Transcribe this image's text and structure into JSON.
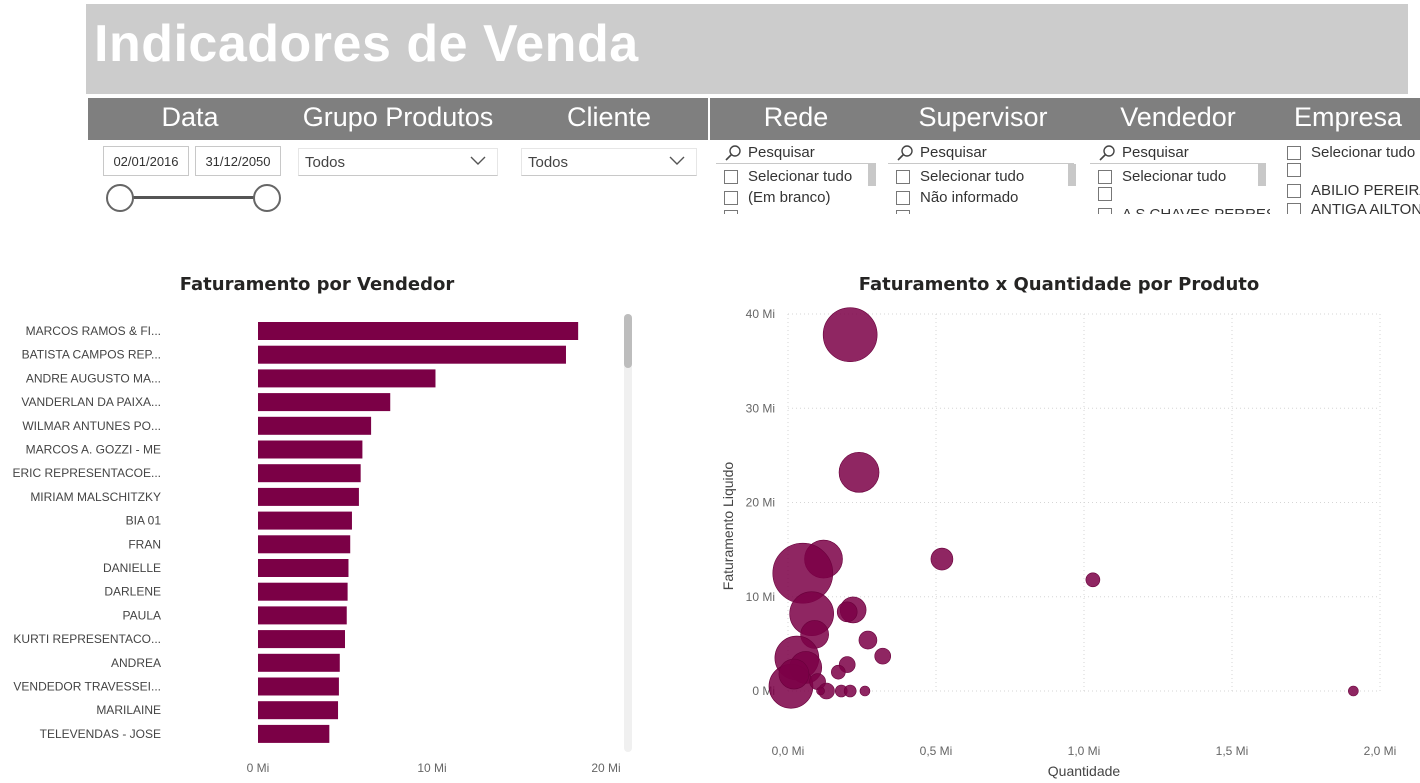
{
  "header": {
    "title": "Indicadores de Venda"
  },
  "filters": {
    "titles": {
      "data": "Data",
      "grupo": "Grupo Produtos",
      "cliente": "Cliente",
      "rede": "Rede",
      "supervisor": "Supervisor",
      "vendedor": "Vendedor",
      "empresa": "Empresa"
    },
    "date": {
      "start": "02/01/2016",
      "end": "31/12/2050"
    },
    "grupo_produtos": {
      "selected": "Todos"
    },
    "cliente": {
      "selected": "Todos"
    },
    "rede": {
      "search": "Pesquisar",
      "items": [
        "Selecionar tudo",
        "(Em branco)"
      ]
    },
    "supervisor": {
      "search": "Pesquisar",
      "items": [
        "Selecionar tudo",
        "Não informado"
      ]
    },
    "vendedor": {
      "search": "Pesquisar",
      "items": [
        "Selecionar tudo",
        "",
        "A S CHAVES PERRES"
      ]
    },
    "empresa": {
      "items": [
        "Selecionar tudo",
        "",
        "ABILIO PEREIRA",
        "ANTIGA AILTON"
      ]
    }
  },
  "chart_data": [
    {
      "type": "bar",
      "orientation": "horizontal",
      "title": "Faturamento por Vendedor",
      "color": "#7b0046",
      "categories": [
        "MARCOS RAMOS & FI...",
        "BATISTA CAMPOS REP...",
        "ANDRE AUGUSTO MA...",
        "VANDERLAN DA PAIXA...",
        "WILMAR ANTUNES PO...",
        "MARCOS A. GOZZI - ME",
        "ERIC REPRESENTACOE...",
        "MIRIAM MALSCHITZKY",
        "BIA 01",
        "FRAN",
        "DANIELLE",
        "DARLENE",
        "PAULA",
        "KURTI REPRESENTACO...",
        "ANDREA",
        "VENDEDOR TRAVESSEI...",
        "MARILAINE",
        "TELEVENDAS - JOSE"
      ],
      "values": [
        18.4,
        17.7,
        10.2,
        7.6,
        6.5,
        6.0,
        5.9,
        5.8,
        5.4,
        5.3,
        5.2,
        5.15,
        5.1,
        5.0,
        4.7,
        4.65,
        4.6,
        4.1
      ],
      "xticks": [
        "0 Mi",
        "10 Mi",
        "20 Mi"
      ],
      "xlim": [
        0,
        20
      ]
    },
    {
      "type": "scatter",
      "title": "Faturamento x Quantidade por Produto",
      "xlabel": "Quantidade",
      "ylabel": "Faturamento Liquido",
      "color": "#7b0046",
      "xlim": [
        0,
        2.0
      ],
      "ylim": [
        0,
        40
      ],
      "xticks": [
        "0,0 Mi",
        "0,5 Mi",
        "1,0 Mi",
        "1,5 Mi",
        "2,0 Mi"
      ],
      "yticks": [
        "0 Mi",
        "10 Mi",
        "20 Mi",
        "30 Mi",
        "40 Mi"
      ],
      "grid": true,
      "points": [
        {
          "x": 0.21,
          "y": 37.8,
          "size": 27
        },
        {
          "x": 0.24,
          "y": 23.2,
          "size": 20
        },
        {
          "x": 0.52,
          "y": 14.0,
          "size": 11
        },
        {
          "x": 1.03,
          "y": 11.8,
          "size": 7
        },
        {
          "x": 1.91,
          "y": 0.0,
          "size": 5
        },
        {
          "x": 0.12,
          "y": 14.0,
          "size": 19
        },
        {
          "x": 0.05,
          "y": 12.5,
          "size": 30
        },
        {
          "x": 0.08,
          "y": 8.2,
          "size": 22
        },
        {
          "x": 0.22,
          "y": 8.6,
          "size": 13
        },
        {
          "x": 0.2,
          "y": 8.4,
          "size": 10
        },
        {
          "x": 0.09,
          "y": 6.0,
          "size": 14
        },
        {
          "x": 0.27,
          "y": 5.4,
          "size": 9
        },
        {
          "x": 0.32,
          "y": 3.7,
          "size": 8
        },
        {
          "x": 0.03,
          "y": 3.5,
          "size": 22
        },
        {
          "x": 0.06,
          "y": 2.5,
          "size": 16
        },
        {
          "x": 0.2,
          "y": 2.8,
          "size": 8
        },
        {
          "x": 0.17,
          "y": 2.0,
          "size": 7
        },
        {
          "x": 0.01,
          "y": 0.5,
          "size": 22
        },
        {
          "x": 0.02,
          "y": 1.8,
          "size": 15
        },
        {
          "x": 0.1,
          "y": 1.0,
          "size": 8
        },
        {
          "x": 0.13,
          "y": 0.0,
          "size": 8
        },
        {
          "x": 0.18,
          "y": 0.0,
          "size": 6
        },
        {
          "x": 0.21,
          "y": 0.0,
          "size": 6
        },
        {
          "x": 0.26,
          "y": 0.0,
          "size": 5
        },
        {
          "x": 0.11,
          "y": 0.0,
          "size": 4
        }
      ]
    }
  ],
  "icons": {
    "search": "search-icon",
    "dropdown": "chevron-down-icon",
    "checkbox": "checkbox-icon"
  }
}
